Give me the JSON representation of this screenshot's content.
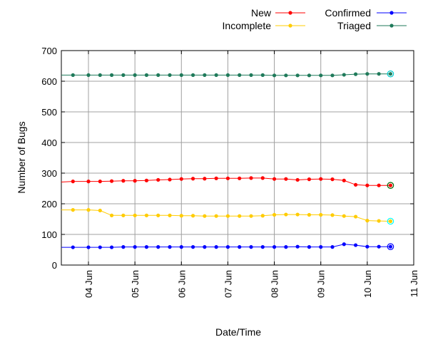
{
  "chart_data": {
    "type": "line",
    "xlabel": "Date/Time",
    "ylabel": "Number of Bugs",
    "ylim": [
      0,
      700
    ],
    "yticks": [
      0,
      100,
      200,
      300,
      400,
      500,
      600,
      700
    ],
    "xlim": [
      "2023-06-03T10:00",
      "2023-06-11T00:00"
    ],
    "xtick_dates": [
      "2023-06-04",
      "2023-06-05",
      "2023-06-06",
      "2023-06-07",
      "2023-06-08",
      "2023-06-09",
      "2023-06-10",
      "2023-06-11"
    ],
    "xtick_labels": [
      "04 Jun",
      "05 Jun",
      "06 Jun",
      "07 Jun",
      "08 Jun",
      "09 Jun",
      "10 Jun",
      "11 Jun"
    ],
    "grid": true,
    "legend_position": "top-right",
    "x": [
      "2023-06-03T10:00",
      "2023-06-03T16:00",
      "2023-06-04T00:00",
      "2023-06-04T06:00",
      "2023-06-04T12:00",
      "2023-06-04T18:00",
      "2023-06-05T00:00",
      "2023-06-05T06:00",
      "2023-06-05T12:00",
      "2023-06-05T18:00",
      "2023-06-06T00:00",
      "2023-06-06T06:00",
      "2023-06-06T12:00",
      "2023-06-06T18:00",
      "2023-06-07T00:00",
      "2023-06-07T06:00",
      "2023-06-07T12:00",
      "2023-06-07T18:00",
      "2023-06-08T00:00",
      "2023-06-08T06:00",
      "2023-06-08T12:00",
      "2023-06-08T18:00",
      "2023-06-09T00:00",
      "2023-06-09T06:00",
      "2023-06-09T12:00",
      "2023-06-09T18:00",
      "2023-06-10T00:00",
      "2023-06-10T06:00",
      "2023-06-10T12:00"
    ],
    "series": [
      {
        "name": "New",
        "color": "#ff0000",
        "values": [
          271,
          273,
          273,
          273,
          274,
          275,
          275,
          276,
          278,
          279,
          281,
          282,
          282,
          283,
          283,
          283,
          284,
          284,
          281,
          281,
          278,
          280,
          281,
          280,
          276,
          262,
          260,
          260,
          260
        ]
      },
      {
        "name": "Incomplete",
        "color": "#ffcc00",
        "values": [
          180,
          180,
          180,
          178,
          162,
          162,
          162,
          162,
          162,
          162,
          161,
          161,
          160,
          160,
          160,
          160,
          160,
          161,
          164,
          165,
          165,
          164,
          164,
          163,
          160,
          158,
          145,
          144,
          143
        ]
      },
      {
        "name": "Confirmed",
        "color": "#0000ff",
        "values": [
          58,
          58,
          58,
          58,
          58,
          59,
          59,
          59,
          59,
          59,
          59,
          59,
          59,
          59,
          59,
          59,
          59,
          59,
          59,
          59,
          60,
          59,
          59,
          59,
          68,
          65,
          60,
          60,
          60
        ]
      },
      {
        "name": "Triaged",
        "color": "#1f7a5a",
        "values": [
          620,
          620,
          620,
          620,
          620,
          620,
          620,
          620,
          620,
          620,
          620,
          620,
          620,
          620,
          620,
          620,
          620,
          620,
          619,
          619,
          619,
          619,
          619,
          619,
          621,
          623,
          624,
          624,
          624
        ]
      }
    ],
    "end_marker_colors": [
      "#006600",
      "#00ffff",
      "#0000ff",
      "#00cccc"
    ]
  }
}
